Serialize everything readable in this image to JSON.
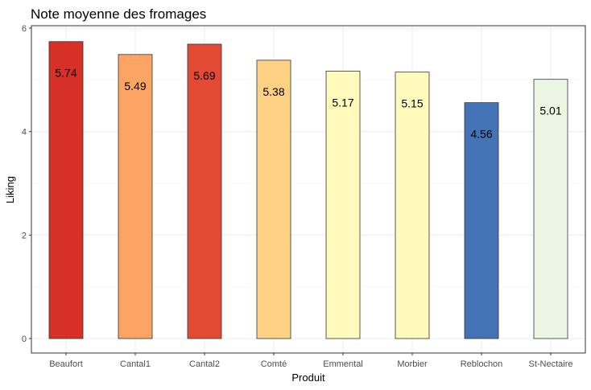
{
  "chart_data": {
    "type": "bar",
    "title": "Note moyenne des fromages",
    "xlabel": "Produit",
    "ylabel": "Liking",
    "ylim": [
      0,
      6
    ],
    "yticks": [
      0,
      2,
      4,
      6
    ],
    "grid": true,
    "legend": "none",
    "categories": [
      "Beaufort",
      "Cantal1",
      "Cantal2",
      "Comté",
      "Emmental",
      "Morbier",
      "Reblochon",
      "St-Nectaire"
    ],
    "values": [
      5.74,
      5.49,
      5.69,
      5.38,
      5.17,
      5.15,
      4.56,
      5.01
    ],
    "labels": [
      "5.74",
      "5.49",
      "5.69",
      "5.38",
      "5.17",
      "5.15",
      "4.56",
      "5.01"
    ],
    "colors": [
      "#d73027",
      "#fca464",
      "#e34a33",
      "#fed185",
      "#fefbbd",
      "#fefbbd",
      "#4473b5",
      "#ebf7e3"
    ]
  }
}
